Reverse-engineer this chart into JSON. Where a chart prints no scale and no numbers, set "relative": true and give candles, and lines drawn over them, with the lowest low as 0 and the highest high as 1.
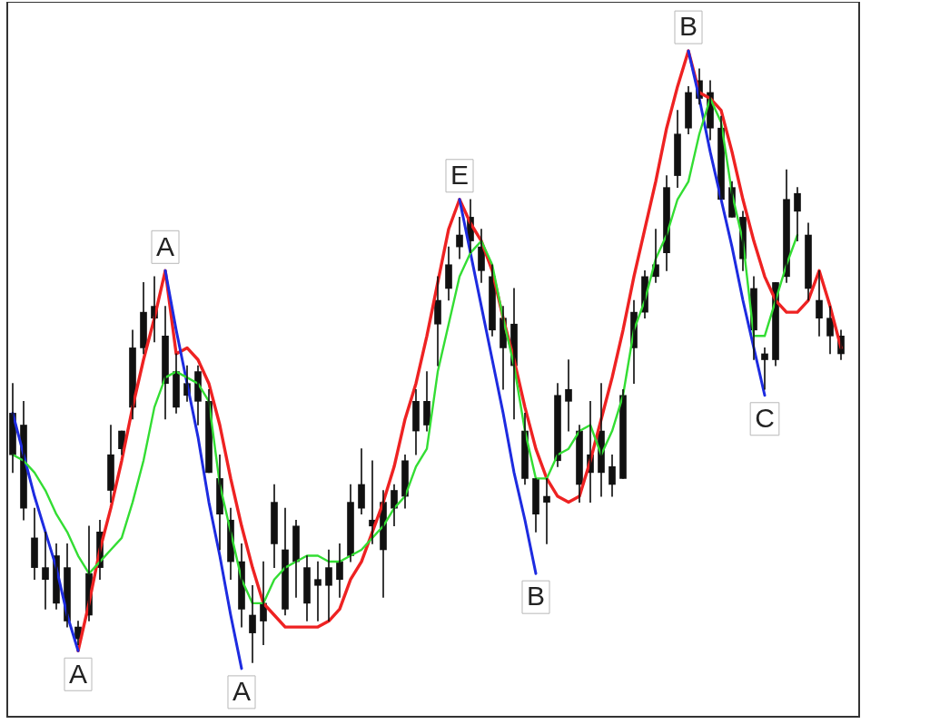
{
  "chart_data": {
    "type": "candlestick",
    "relative": true,
    "color": "#111111",
    "categories": [
      null,
      null,
      null,
      null,
      null,
      null,
      null,
      null,
      null,
      null,
      null,
      null,
      null,
      null,
      null,
      null,
      null,
      null,
      null,
      null,
      null,
      null,
      null,
      null,
      null,
      null,
      null,
      null,
      null,
      null,
      null,
      null,
      null,
      null,
      null,
      null,
      null,
      null,
      null,
      null,
      null,
      null,
      null,
      null,
      null,
      null,
      null,
      null,
      null,
      null,
      null,
      null,
      null,
      null,
      null,
      null,
      null,
      null,
      null,
      null,
      null,
      null,
      null,
      null,
      null,
      null,
      null,
      null,
      null,
      null,
      null,
      null,
      null,
      null,
      null,
      null,
      null
    ],
    "ohlc": [
      [
        0.42,
        0.47,
        0.32,
        0.35
      ],
      [
        0.4,
        0.44,
        0.24,
        0.26
      ],
      [
        0.21,
        0.26,
        0.14,
        0.16
      ],
      [
        0.16,
        0.22,
        0.09,
        0.14
      ],
      [
        0.18,
        0.2,
        0.09,
        0.1
      ],
      [
        0.16,
        0.2,
        0.06,
        0.07
      ],
      [
        0.06,
        0.07,
        0.03,
        0.04
      ],
      [
        0.15,
        0.23,
        0.07,
        0.08
      ],
      [
        0.22,
        0.24,
        0.14,
        0.16
      ],
      [
        0.35,
        0.4,
        0.27,
        0.29
      ],
      [
        0.39,
        0.39,
        0.35,
        0.36
      ],
      [
        0.53,
        0.56,
        0.41,
        0.43
      ],
      [
        0.59,
        0.64,
        0.52,
        0.53
      ],
      [
        0.6,
        0.65,
        0.54,
        0.58
      ],
      [
        0.55,
        0.6,
        0.41,
        0.47
      ],
      [
        0.49,
        0.52,
        0.42,
        0.43
      ],
      [
        0.47,
        0.5,
        0.44,
        0.45
      ],
      [
        0.49,
        0.5,
        0.4,
        0.44
      ],
      [
        0.44,
        0.46,
        0.32,
        0.32
      ],
      [
        0.31,
        0.35,
        0.19,
        0.25
      ],
      [
        0.24,
        0.26,
        0.14,
        0.17
      ],
      [
        0.17,
        0.2,
        0.06,
        0.09
      ],
      [
        0.08,
        0.13,
        0,
        0.05
      ],
      [
        0.1,
        0.17,
        0.03,
        0.07
      ],
      [
        0.27,
        0.3,
        0.16,
        0.2
      ],
      [
        0.19,
        0.26,
        0.08,
        0.09
      ],
      [
        0.23,
        0.24,
        0.11,
        0.17
      ],
      [
        0.16,
        0.18,
        0.07,
        0.1
      ],
      [
        0.14,
        0.17,
        0.07,
        0.13
      ],
      [
        0.16,
        0.19,
        0.07,
        0.13
      ],
      [
        0.17,
        0.2,
        0.11,
        0.14
      ],
      [
        0.27,
        0.3,
        0.17,
        0.18
      ],
      [
        0.3,
        0.36,
        0.25,
        0.26
      ],
      [
        0.24,
        0.34,
        0.2,
        0.23
      ],
      [
        0.27,
        0.29,
        0.11,
        0.19
      ],
      [
        0.29,
        0.3,
        0.23,
        0.26
      ],
      [
        0.34,
        0.35,
        0.26,
        0.28
      ],
      [
        0.44,
        0.46,
        0.35,
        0.39
      ],
      [
        0.44,
        0.49,
        0.39,
        0.4
      ],
      [
        0.61,
        0.65,
        0.5,
        0.57
      ],
      [
        0.67,
        0.7,
        0.61,
        0.63
      ],
      [
        0.72,
        0.75,
        0.68,
        0.7
      ],
      [
        0.75,
        0.78,
        0.69,
        0.71
      ],
      [
        0.7,
        0.73,
        0.64,
        0.66
      ],
      [
        0.65,
        0.67,
        0.55,
        0.56
      ],
      [
        0.58,
        0.6,
        0.46,
        0.53
      ],
      [
        0.57,
        0.63,
        0.41,
        0.5
      ],
      [
        0.39,
        0.42,
        0.3,
        0.31
      ],
      [
        0.31,
        0.31,
        0.22,
        0.25
      ],
      [
        0.28,
        0.31,
        0.2,
        0.27
      ],
      [
        0.45,
        0.47,
        0.33,
        0.34
      ],
      [
        0.46,
        0.51,
        0.39,
        0.44
      ],
      [
        0.39,
        0.4,
        0.27,
        0.3
      ],
      [
        0.35,
        0.44,
        0.27,
        0.32
      ],
      [
        0.39,
        0.47,
        0.28,
        0.32
      ],
      [
        0.33,
        0.35,
        0.28,
        0.3
      ],
      [
        0.45,
        0.46,
        0.31,
        0.31
      ],
      [
        0.59,
        0.61,
        0.47,
        0.53
      ],
      [
        0.65,
        0.66,
        0.58,
        0.59
      ],
      [
        0.67,
        0.73,
        0.64,
        0.65
      ],
      [
        0.8,
        0.82,
        0.66,
        0.69
      ],
      [
        0.89,
        0.93,
        0.8,
        0.82
      ],
      [
        0.96,
        0.97,
        0.89,
        0.9
      ],
      [
        0.98,
        1,
        0.94,
        0.95
      ],
      [
        0.96,
        0.98,
        0.88,
        0.9
      ],
      [
        0.9,
        0.92,
        0.78,
        0.78
      ],
      [
        0.8,
        0.81,
        0.75,
        0.75
      ],
      [
        0.75,
        0.76,
        0.66,
        0.68
      ],
      [
        0.63,
        0.65,
        0.51,
        0.56
      ],
      [
        0.52,
        0.53,
        0.46,
        0.51
      ],
      [
        0.64,
        0.64,
        0.5,
        0.51
      ],
      [
        0.78,
        0.83,
        0.64,
        0.65
      ],
      [
        0.79,
        0.8,
        0.71,
        0.76
      ],
      [
        0.72,
        0.74,
        0.61,
        0.63
      ],
      [
        0.61,
        0.66,
        0.55,
        0.58
      ],
      [
        0.58,
        0.6,
        0.52,
        0.55
      ],
      [
        0.55,
        0.56,
        0.51,
        0.52
      ]
    ],
    "series": [
      {
        "type": "line",
        "color": "#ee2222",
        "values": [
          null,
          null,
          null,
          null,
          null,
          null,
          0.02,
          0.1,
          0.19,
          0.26,
          0.34,
          0.43,
          0.51,
          0.58,
          0.66,
          0.52,
          0.53,
          0.51,
          0.47,
          0.4,
          0.31,
          0.23,
          0.16,
          0.1,
          0.08,
          0.06,
          0.06,
          0.06,
          0.06,
          0.07,
          0.09,
          0.14,
          0.17,
          0.22,
          0.27,
          0.33,
          0.41,
          0.47,
          0.55,
          0.64,
          0.73,
          0.78,
          0.74,
          0.71,
          0.66,
          0.58,
          0.51,
          0.43,
          0.36,
          0.31,
          0.28,
          0.27,
          0.28,
          0.34,
          0.41,
          0.48,
          0.56,
          0.65,
          0.73,
          0.81,
          0.9,
          0.97,
          1.03,
          0.96,
          0.95,
          0.93,
          0.86,
          0.78,
          0.71,
          0.65,
          0.61,
          0.59,
          0.59,
          0.61,
          0.66,
          0.6,
          0.53
        ]
      },
      {
        "type": "line",
        "color": "#33dd33",
        "values": [
          0.35,
          0.34,
          0.32,
          0.29,
          0.25,
          0.22,
          0.18,
          0.15,
          0.17,
          0.19,
          0.21,
          0.27,
          0.34,
          0.43,
          0.48,
          0.49,
          0.48,
          0.47,
          0.44,
          0.3,
          0.22,
          0.14,
          0.1,
          0.1,
          0.14,
          0.16,
          0.17,
          0.18,
          0.18,
          0.17,
          0.17,
          0.18,
          0.19,
          0.21,
          0.23,
          0.26,
          0.28,
          0.33,
          0.36,
          0.49,
          0.57,
          0.65,
          0.69,
          0.71,
          0.67,
          0.58,
          0.5,
          0.39,
          0.31,
          0.31,
          0.35,
          0.36,
          0.39,
          0.4,
          0.35,
          0.39,
          0.45,
          0.56,
          0.61,
          0.68,
          0.72,
          0.78,
          0.81,
          0.89,
          0.95,
          0.91,
          0.79,
          0.71,
          0.55,
          0.55,
          0.61,
          0.67,
          0.72,
          null,
          null,
          null,
          null
        ]
      },
      {
        "type": "line",
        "color": "#1d2be0",
        "values": [
          0.42,
          0.35,
          0.28,
          0.22,
          0.16,
          0.08,
          0.02,
          null,
          null,
          null,
          null,
          null,
          null,
          null,
          0.66,
          0.56,
          0.47,
          0.38,
          0.27,
          0.18,
          0.08,
          -0.01,
          null,
          null,
          null,
          null,
          null,
          null,
          null,
          null,
          null,
          null,
          null,
          null,
          null,
          null,
          null,
          null,
          null,
          null,
          null,
          0.78,
          0.69,
          0.6,
          0.51,
          0.42,
          0.32,
          0.24,
          0.15,
          null,
          null,
          null,
          null,
          null,
          null,
          null,
          null,
          null,
          null,
          null,
          null,
          null,
          1.03,
          0.95,
          0.86,
          0.78,
          0.7,
          0.61,
          0.53,
          0.45,
          null,
          null,
          null,
          null,
          null,
          null,
          null
        ]
      }
    ],
    "annotations": [
      {
        "text": "A",
        "y": 0.02
      },
      {
        "text": "A",
        "y": 0.66
      },
      {
        "text": "A",
        "y": -0.01
      },
      {
        "text": "E",
        "y": 0.78
      },
      {
        "text": "B",
        "y": 0.15
      },
      {
        "text": "B",
        "y": 1.03
      },
      {
        "text": "C",
        "y": 0.45
      }
    ]
  }
}
